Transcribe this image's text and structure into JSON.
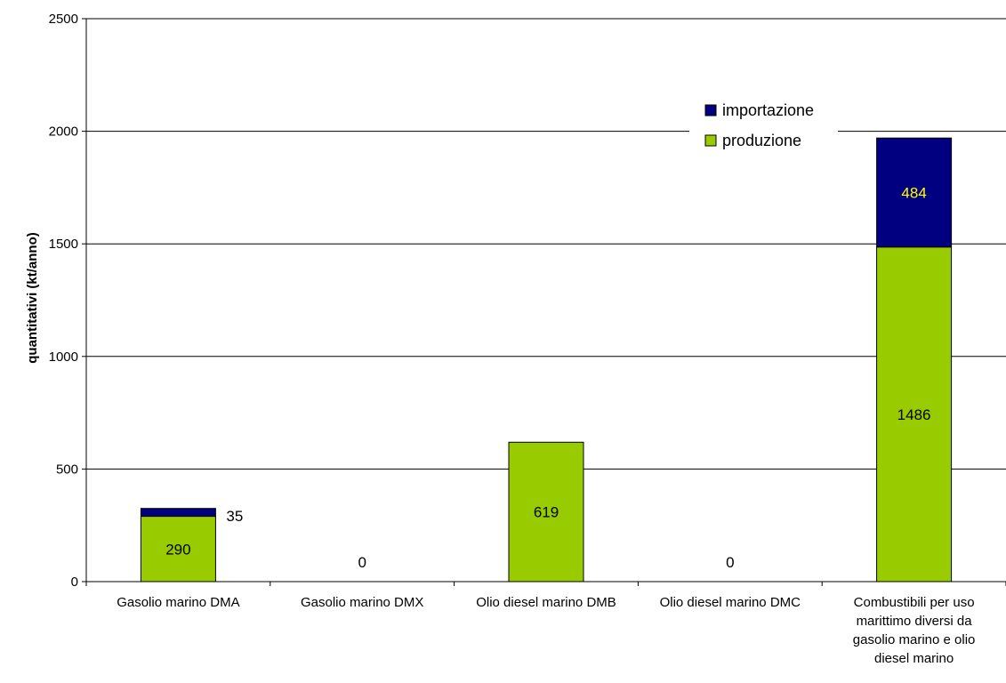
{
  "chart_data": {
    "type": "bar",
    "stacked": true,
    "title": "",
    "xlabel": "",
    "ylabel": "quantitativi (kt/anno)",
    "ylim": [
      0,
      2500
    ],
    "yticks": [
      0,
      500,
      1000,
      1500,
      2000,
      2500
    ],
    "grid": true,
    "legend_position": "top-right",
    "categories": [
      [
        "Gasolio marino DMA"
      ],
      [
        "Gasolio marino DMX"
      ],
      [
        "Olio diesel marino DMB"
      ],
      [
        "Olio diesel marino DMC"
      ],
      [
        "Combustibili per uso",
        "marittimo diversi da",
        "gasolio marino e olio",
        "diesel marino"
      ]
    ],
    "series": [
      {
        "name": "produzione",
        "color": "#99CC00",
        "values": [
          290,
          0,
          619,
          0,
          1486
        ]
      },
      {
        "name": "importazione",
        "color": "#000080",
        "values": [
          35,
          0,
          0,
          0,
          484
        ]
      }
    ],
    "data_labels": [
      {
        "category": 0,
        "series": "produzione",
        "text": "290",
        "placement": "inside",
        "color": "#000000"
      },
      {
        "category": 0,
        "series": "importazione",
        "text": "35",
        "placement": "right",
        "color": "#000000"
      },
      {
        "category": 1,
        "series": "produzione",
        "text": "0",
        "placement": "above",
        "color": "#000000"
      },
      {
        "category": 2,
        "series": "produzione",
        "text": "619",
        "placement": "inside",
        "color": "#000000"
      },
      {
        "category": 3,
        "series": "produzione",
        "text": "0",
        "placement": "above",
        "color": "#000000"
      },
      {
        "category": 4,
        "series": "produzione",
        "text": "1486",
        "placement": "inside",
        "color": "#000000"
      },
      {
        "category": 4,
        "series": "importazione",
        "text": "484",
        "placement": "inside",
        "color": "#FFFF00"
      }
    ],
    "legend": [
      {
        "label": "importazione",
        "color": "#000080"
      },
      {
        "label": "produzione",
        "color": "#99CC00"
      }
    ]
  }
}
